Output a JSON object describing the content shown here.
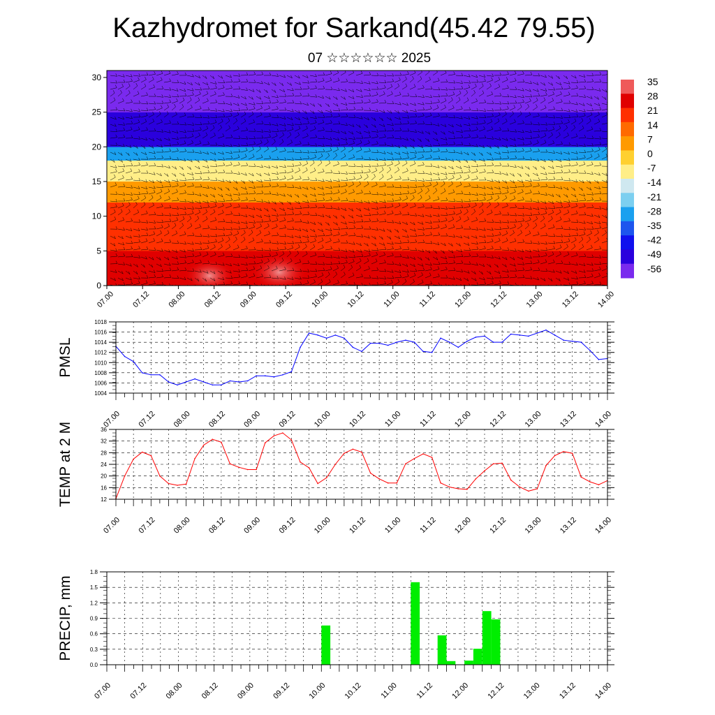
{
  "title": "Kazhydromet for Sarkand(45.42 79.55)",
  "subtitle": "07 ☆☆☆☆☆☆ 2025",
  "colorbar": {
    "labels": [
      "35",
      "28",
      "21",
      "14",
      "7",
      "0",
      "-7",
      "-14",
      "-21",
      "-28",
      "-35",
      "-42",
      "-49",
      "-56"
    ],
    "colors": [
      "#ef5a5a",
      "#e00000",
      "#ff3000",
      "#ff6a00",
      "#ff9a00",
      "#ffd030",
      "#ffee88",
      "#cfe8f0",
      "#7ccff0",
      "#1aa0ef",
      "#1d55ee",
      "#1010ee",
      "#2a00dd",
      "#7a2aee"
    ]
  },
  "chart_data": [
    {
      "type": "heatmap",
      "name": "cross-section",
      "x_ticks": [
        "07.00",
        "07.12",
        "08.00",
        "08.12",
        "09.00",
        "09.12",
        "10.00",
        "10.12",
        "11.00",
        "11.12",
        "12.00",
        "12.12",
        "13.00",
        "13.12",
        "14.00"
      ],
      "y_ticks": [
        "0",
        "5",
        "10",
        "15",
        "20",
        "25",
        "30"
      ],
      "ylim": [
        0,
        31
      ],
      "bands": [
        {
          "from": 0,
          "to": 5,
          "value": 28
        },
        {
          "from": 5,
          "to": 12,
          "value": 21
        },
        {
          "from": 12,
          "to": 15,
          "value": 7
        },
        {
          "from": 15,
          "to": 18,
          "value": -7
        },
        {
          "from": 18,
          "to": 20,
          "value": -28
        },
        {
          "from": 20,
          "to": 25,
          "value": -49
        },
        {
          "from": 25,
          "to": 31,
          "value": -56
        }
      ],
      "overlay": "wind barbs"
    },
    {
      "type": "line",
      "ylabel": "PMSL",
      "ylim": [
        1004,
        1018
      ],
      "y_ticks": [
        "1004",
        "1006",
        "1008",
        "1010",
        "1012",
        "1014",
        "1016",
        "1018"
      ],
      "x_ticks": [
        "07.00",
        "07.12",
        "08.00",
        "08.12",
        "09.00",
        "09.12",
        "10.00",
        "10.12",
        "11.00",
        "11.12",
        "12.00",
        "12.12",
        "13.00",
        "13.12",
        "14.00"
      ],
      "color": "#0000ff",
      "x": [
        0,
        3,
        6,
        9,
        12,
        15,
        18,
        21,
        24,
        27,
        30,
        33,
        36,
        39,
        42,
        45,
        48,
        51,
        54,
        57,
        60,
        63,
        66,
        69,
        72,
        75,
        78,
        81,
        84,
        87,
        90,
        93,
        96,
        99,
        102,
        105,
        108,
        111,
        114,
        117,
        120,
        123,
        126,
        129,
        132,
        135,
        138,
        141,
        144,
        147,
        150,
        153,
        156,
        159,
        162,
        165,
        168
      ],
      "values": [
        1013.2,
        1011.2,
        1010.2,
        1008.0,
        1007.6,
        1007.6,
        1006.2,
        1005.6,
        1006.2,
        1006.8,
        1006.2,
        1005.6,
        1005.6,
        1006.4,
        1006.2,
        1006.4,
        1007.4,
        1007.4,
        1007.2,
        1007.6,
        1008.2,
        1013.0,
        1015.8,
        1015.4,
        1014.8,
        1015.4,
        1014.8,
        1013.0,
        1012.2,
        1013.8,
        1013.8,
        1013.4,
        1014.0,
        1014.4,
        1014.0,
        1012.2,
        1012.0,
        1014.8,
        1014.0,
        1013.0,
        1014.2,
        1015.0,
        1015.2,
        1014.0,
        1014.0,
        1015.6,
        1015.4,
        1015.2,
        1015.8,
        1016.4,
        1015.4,
        1014.4,
        1014.2,
        1014.0,
        1012.4,
        1010.6,
        1010.8
      ]
    },
    {
      "type": "line",
      "ylabel": "TEMP at 2 M",
      "ylim": [
        12,
        36
      ],
      "y_ticks": [
        "12",
        "16",
        "20",
        "24",
        "28",
        "32",
        "36"
      ],
      "x_ticks": [
        "07.00",
        "07.12",
        "08.00",
        "08.12",
        "09.00",
        "09.12",
        "10.00",
        "10.12",
        "11.00",
        "11.12",
        "12.00",
        "12.12",
        "13.00",
        "13.12",
        "14.00"
      ],
      "color": "#ff0000",
      "x": [
        0,
        3,
        6,
        9,
        12,
        15,
        18,
        21,
        24,
        27,
        30,
        33,
        36,
        39,
        42,
        45,
        48,
        51,
        54,
        57,
        60,
        63,
        66,
        69,
        72,
        75,
        78,
        81,
        84,
        87,
        90,
        93,
        96,
        99,
        102,
        105,
        108,
        111,
        114,
        117,
        120,
        123,
        126,
        129,
        132,
        135,
        138,
        141,
        144,
        147,
        150,
        153,
        156,
        159,
        162,
        165,
        168
      ],
      "values": [
        12.2,
        20.0,
        25.8,
        28.2,
        27.0,
        20.0,
        17.4,
        16.8,
        17.2,
        26.0,
        30.6,
        32.6,
        31.6,
        24.2,
        23.0,
        22.2,
        22.2,
        31.4,
        33.8,
        34.8,
        32.4,
        24.8,
        22.8,
        17.4,
        19.4,
        24.0,
        27.8,
        29.2,
        28.2,
        21.0,
        19.0,
        17.6,
        17.6,
        24.2,
        26.0,
        27.6,
        26.4,
        17.6,
        16.2,
        15.6,
        15.4,
        19.0,
        21.8,
        24.2,
        24.4,
        18.6,
        16.2,
        14.8,
        15.6,
        23.6,
        27.0,
        28.4,
        27.8,
        19.6,
        18.0,
        17.0,
        18.4
      ]
    },
    {
      "type": "bar",
      "ylabel": "PRECIP, mm",
      "ylim": [
        0,
        1.8
      ],
      "y_ticks": [
        "0.0",
        "0.3",
        "0.6",
        "0.9",
        "1.2",
        "1.5",
        "1.8"
      ],
      "x_ticks": [
        "07.00",
        "07.12",
        "08.00",
        "08.12",
        "09.00",
        "09.12",
        "10.00",
        "10.12",
        "11.00",
        "11.12",
        "12.00",
        "12.12",
        "13.00",
        "13.12",
        "14.00"
      ],
      "color": "#00ee00",
      "x": [
        69,
        72,
        99,
        102,
        111,
        114,
        120,
        123,
        126,
        129
      ],
      "values": [
        0.0,
        0.76,
        0.0,
        1.6,
        0.57,
        0.07,
        0.08,
        0.31,
        1.04,
        0.88
      ]
    }
  ]
}
